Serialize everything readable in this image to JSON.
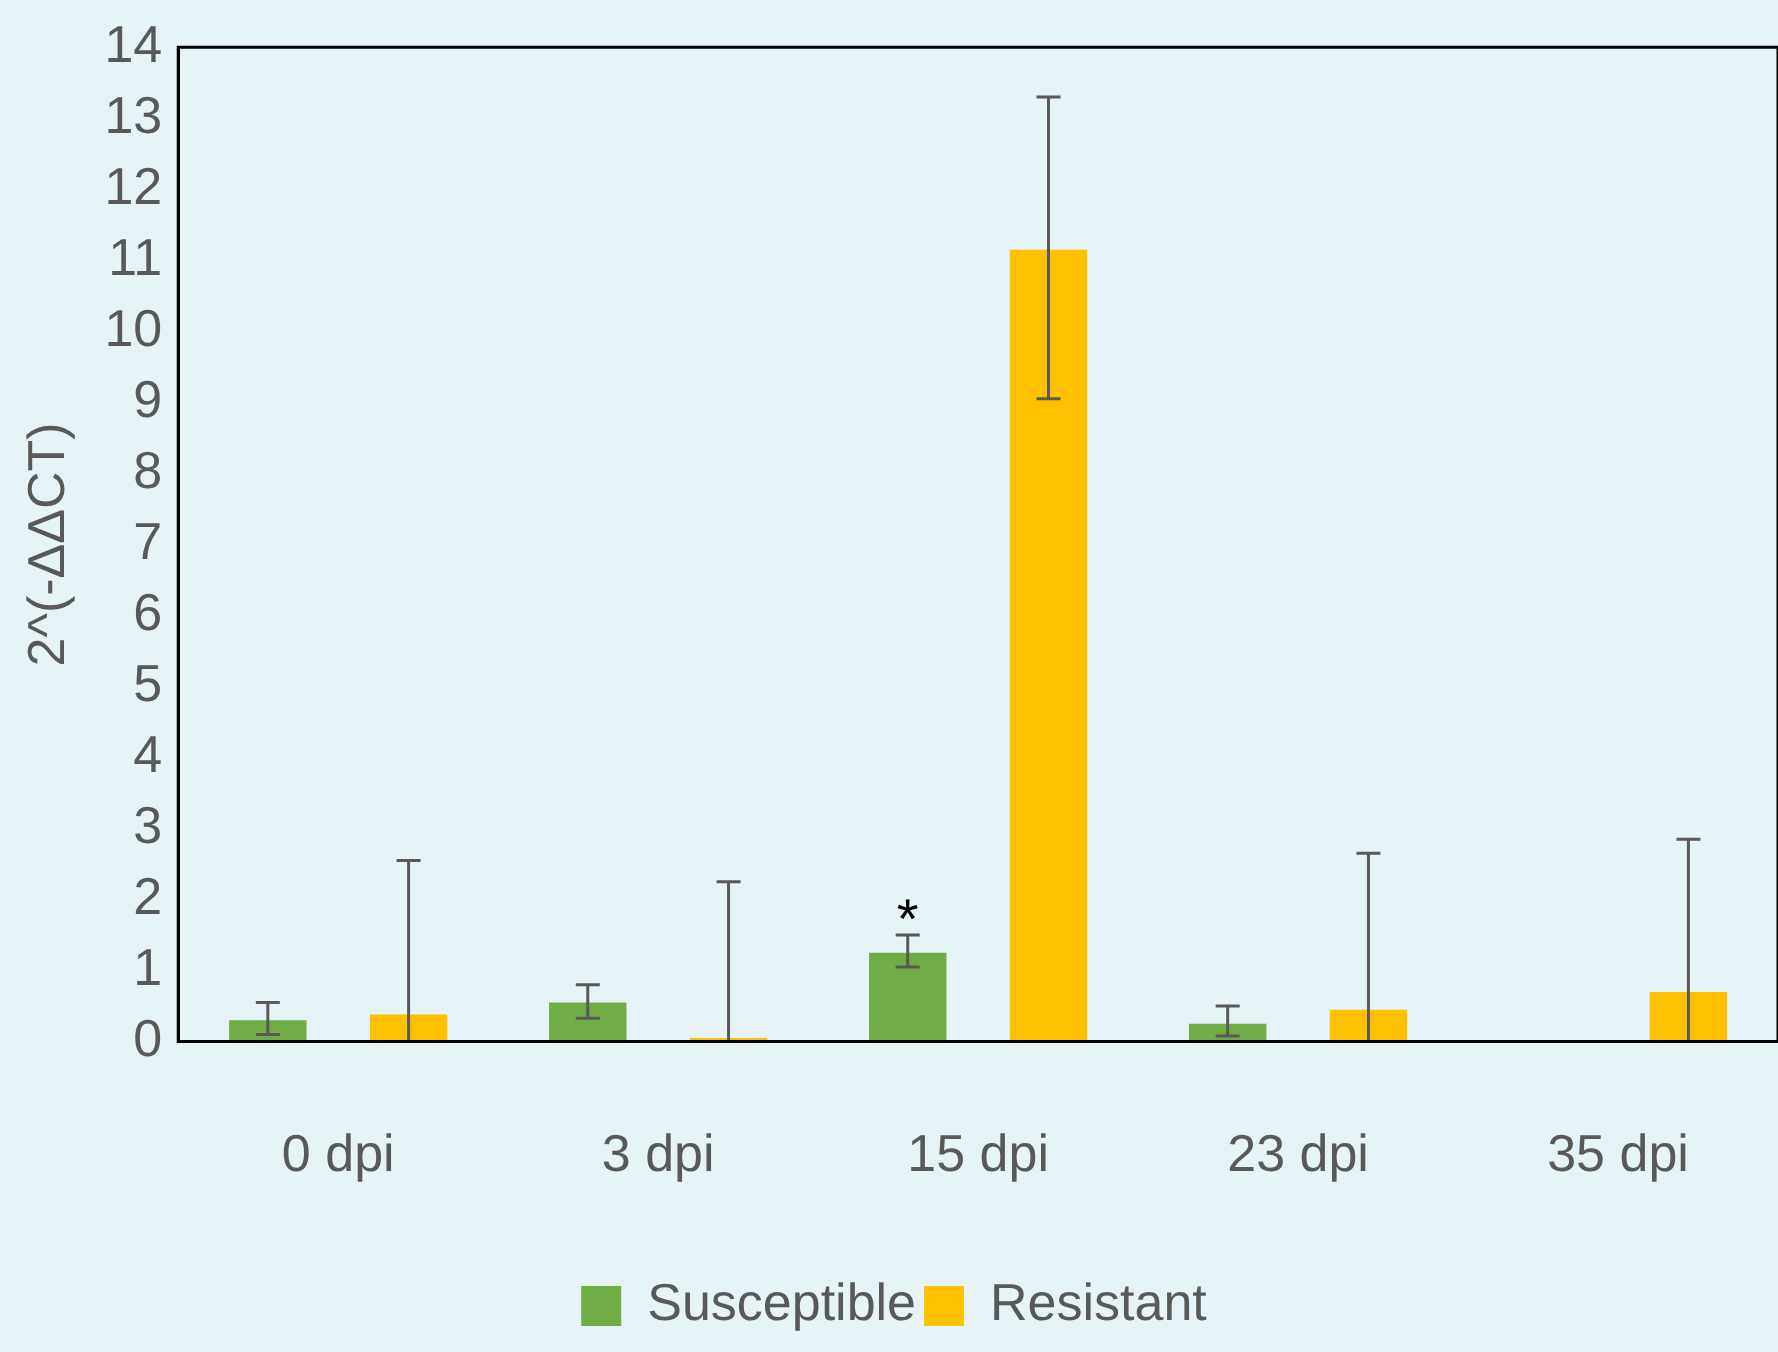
{
  "chart_data": {
    "type": "bar",
    "ylabel": "2^(-ΔΔCT)",
    "categories": [
      "0 dpi",
      "3 dpi",
      "15 dpi",
      "23 dpi",
      "35 dpi"
    ],
    "series": [
      {
        "name": "Susceptible",
        "color": "#70ad47",
        "values": [
          0.3,
          0.55,
          1.25,
          0.25,
          null
        ],
        "errors": [
          [
            0.1,
            0.55
          ],
          [
            0.33,
            0.8
          ],
          [
            1.05,
            1.5
          ],
          [
            0.08,
            0.5
          ],
          null
        ]
      },
      {
        "name": "Resistant",
        "color": "#ffc000",
        "values": [
          0.38,
          0.05,
          11.15,
          0.45,
          0.7
        ],
        "errors": [
          [
            0,
            2.55
          ],
          [
            0,
            2.25
          ],
          [
            9.05,
            13.3
          ],
          [
            0,
            2.65
          ],
          [
            0,
            2.85
          ]
        ]
      }
    ],
    "ylim": [
      0,
      14
    ],
    "yticks": [
      0,
      1,
      2,
      3,
      4,
      5,
      6,
      7,
      8,
      9,
      10,
      11,
      12,
      13,
      14
    ],
    "grid": false,
    "legend": "bottom",
    "annotations": [
      "*"
    ]
  }
}
